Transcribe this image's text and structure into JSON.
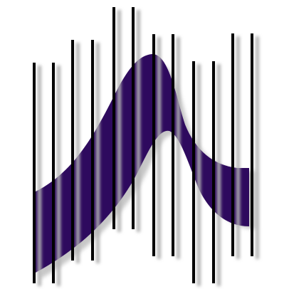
{
  "logo": {
    "name": "bars-and-wave-logo",
    "colors": {
      "background": "#ffffff",
      "wave": "#2e0a5e",
      "wave_shadow": "#9a9a9a",
      "bar": "#000000",
      "bar_shadow": "#b4b4b4"
    },
    "bar_pairs": 6,
    "bars_per_pair": 2
  }
}
